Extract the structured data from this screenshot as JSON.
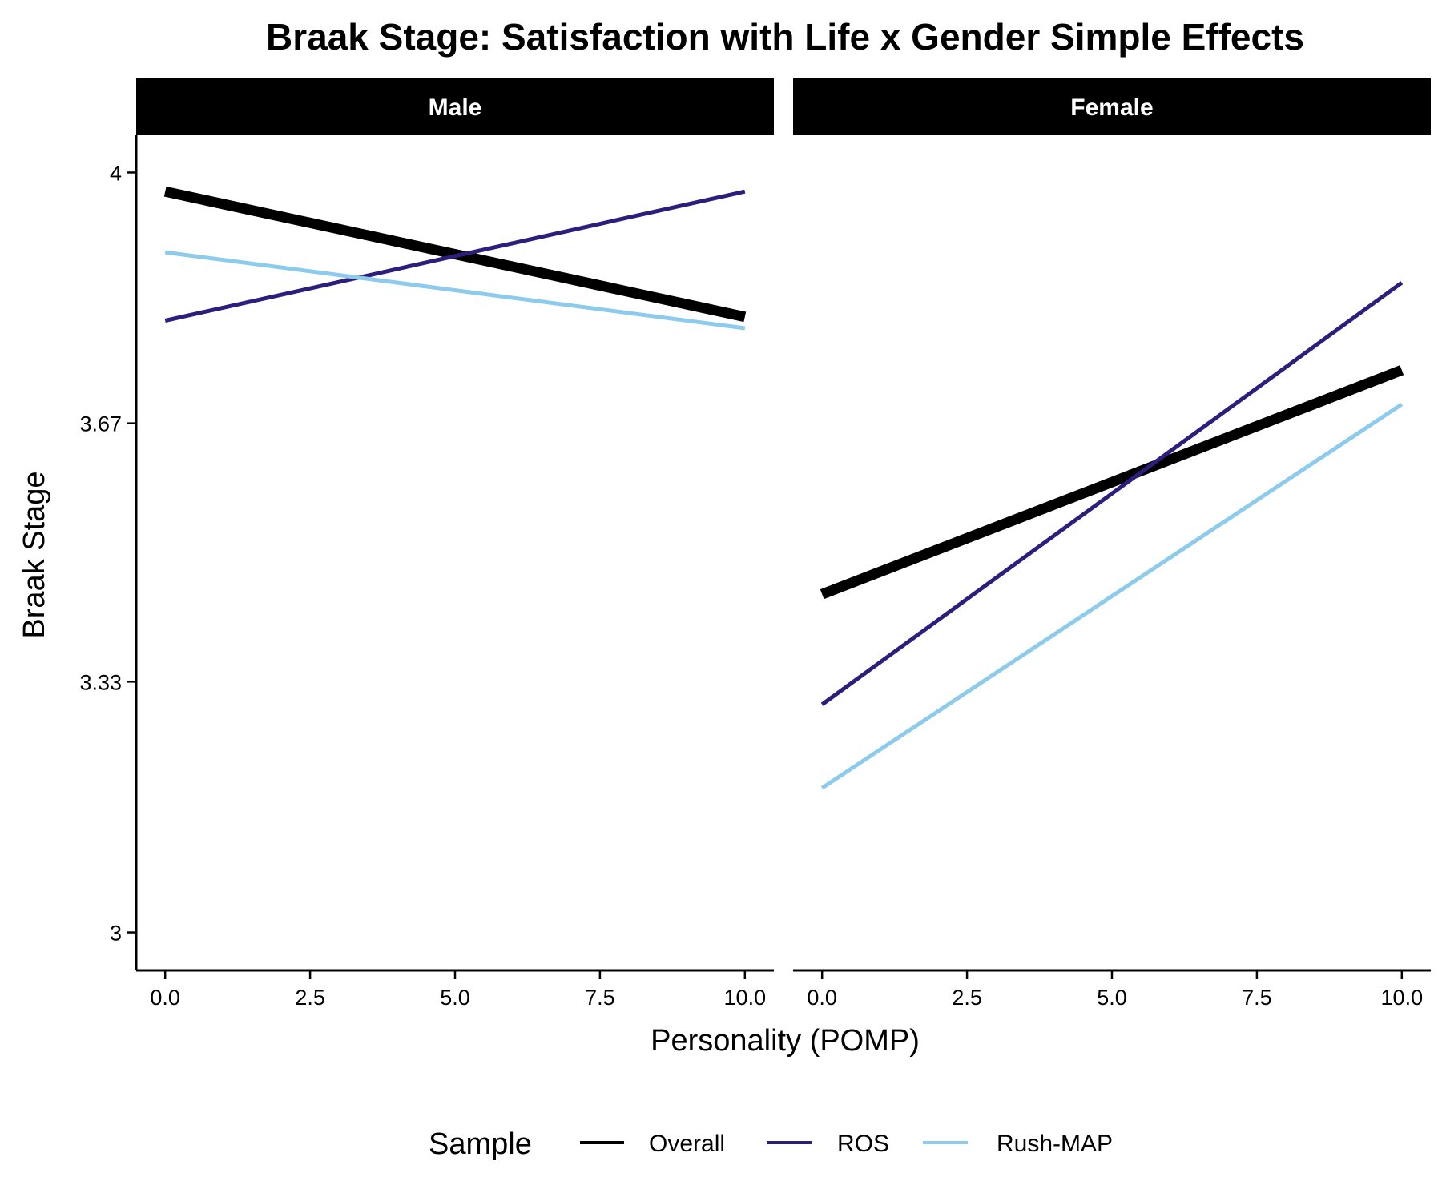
{
  "chart_data": {
    "type": "line",
    "title": "Braak Stage: Satisfaction with Life x Gender Simple Effects",
    "xlabel": "Personality (POMP)",
    "ylabel": "Braak Stage",
    "xlim": [
      -0.5,
      10.5
    ],
    "ylim": [
      2.95,
      4.05
    ],
    "x_ticks": [
      0,
      2.5,
      5,
      7.5,
      10
    ],
    "x_tick_labels": [
      "0.0",
      "2.5",
      "5.0",
      "7.5",
      "10.0"
    ],
    "y_ticks": [
      3,
      3.33,
      3.67,
      4
    ],
    "y_tick_labels": [
      "3",
      "3.33",
      "3.67",
      "4"
    ],
    "grid": false,
    "legend": {
      "title": "Sample",
      "position": "bottom",
      "entries": [
        "Overall",
        "ROS",
        "Rush-MAP"
      ]
    },
    "colors": {
      "Overall": "#000000",
      "ROS": "#2d1e7d",
      "Rush-MAP": "#8ccbeb",
      "strip_background": "#000000"
    },
    "panels": [
      {
        "name": "Male",
        "series": [
          {
            "name": "Overall",
            "x": [
              0,
              10
            ],
            "y": [
              3.975,
              3.81
            ]
          },
          {
            "name": "ROS",
            "x": [
              0,
              10
            ],
            "y": [
              3.805,
              3.975
            ]
          },
          {
            "name": "Rush-MAP",
            "x": [
              0,
              10
            ],
            "y": [
              3.895,
              3.795
            ]
          }
        ]
      },
      {
        "name": "Female",
        "series": [
          {
            "name": "Overall",
            "x": [
              0,
              10
            ],
            "y": [
              3.445,
              3.74
            ]
          },
          {
            "name": "ROS",
            "x": [
              0,
              10
            ],
            "y": [
              3.3,
              3.855
            ]
          },
          {
            "name": "Rush-MAP",
            "x": [
              0,
              10
            ],
            "y": [
              3.19,
              3.695
            ]
          }
        ]
      }
    ]
  }
}
